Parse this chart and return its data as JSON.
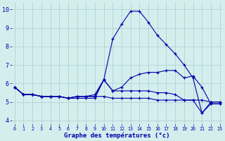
{
  "title": "Graphe des températures (°c)",
  "background_color": "#d4eeee",
  "grid_color": "#aacece",
  "line_color": "#0000aa",
  "x_hours": [
    0,
    1,
    2,
    3,
    4,
    5,
    6,
    7,
    8,
    9,
    10,
    11,
    12,
    13,
    14,
    15,
    16,
    17,
    18,
    19,
    20,
    21,
    22,
    23
  ],
  "ylim": [
    3.8,
    10.4
  ],
  "yticks": [
    4,
    5,
    6,
    7,
    8,
    9,
    10
  ],
  "series": [
    [
      5.8,
      5.4,
      5.4,
      5.3,
      5.3,
      5.3,
      5.2,
      5.2,
      5.2,
      5.2,
      6.2,
      8.4,
      9.2,
      9.9,
      9.9,
      9.3,
      8.6,
      8.1,
      7.6,
      7.0,
      6.3,
      4.4,
      4.9,
      4.9
    ],
    [
      5.8,
      5.4,
      5.4,
      5.3,
      5.3,
      5.3,
      5.2,
      5.3,
      5.3,
      5.4,
      6.2,
      5.6,
      5.8,
      6.3,
      6.5,
      6.6,
      6.6,
      6.7,
      6.7,
      6.3,
      6.4,
      5.8,
      4.9,
      4.9
    ],
    [
      5.8,
      5.4,
      5.4,
      5.3,
      5.3,
      5.3,
      5.2,
      5.3,
      5.3,
      5.3,
      6.2,
      5.6,
      5.6,
      5.6,
      5.6,
      5.6,
      5.5,
      5.5,
      5.4,
      5.1,
      5.1,
      4.4,
      5.0,
      5.0
    ],
    [
      5.8,
      5.4,
      5.4,
      5.3,
      5.3,
      5.3,
      5.2,
      5.3,
      5.3,
      5.3,
      5.3,
      5.2,
      5.2,
      5.2,
      5.2,
      5.2,
      5.1,
      5.1,
      5.1,
      5.1,
      5.1,
      5.1,
      5.0,
      5.0
    ]
  ]
}
